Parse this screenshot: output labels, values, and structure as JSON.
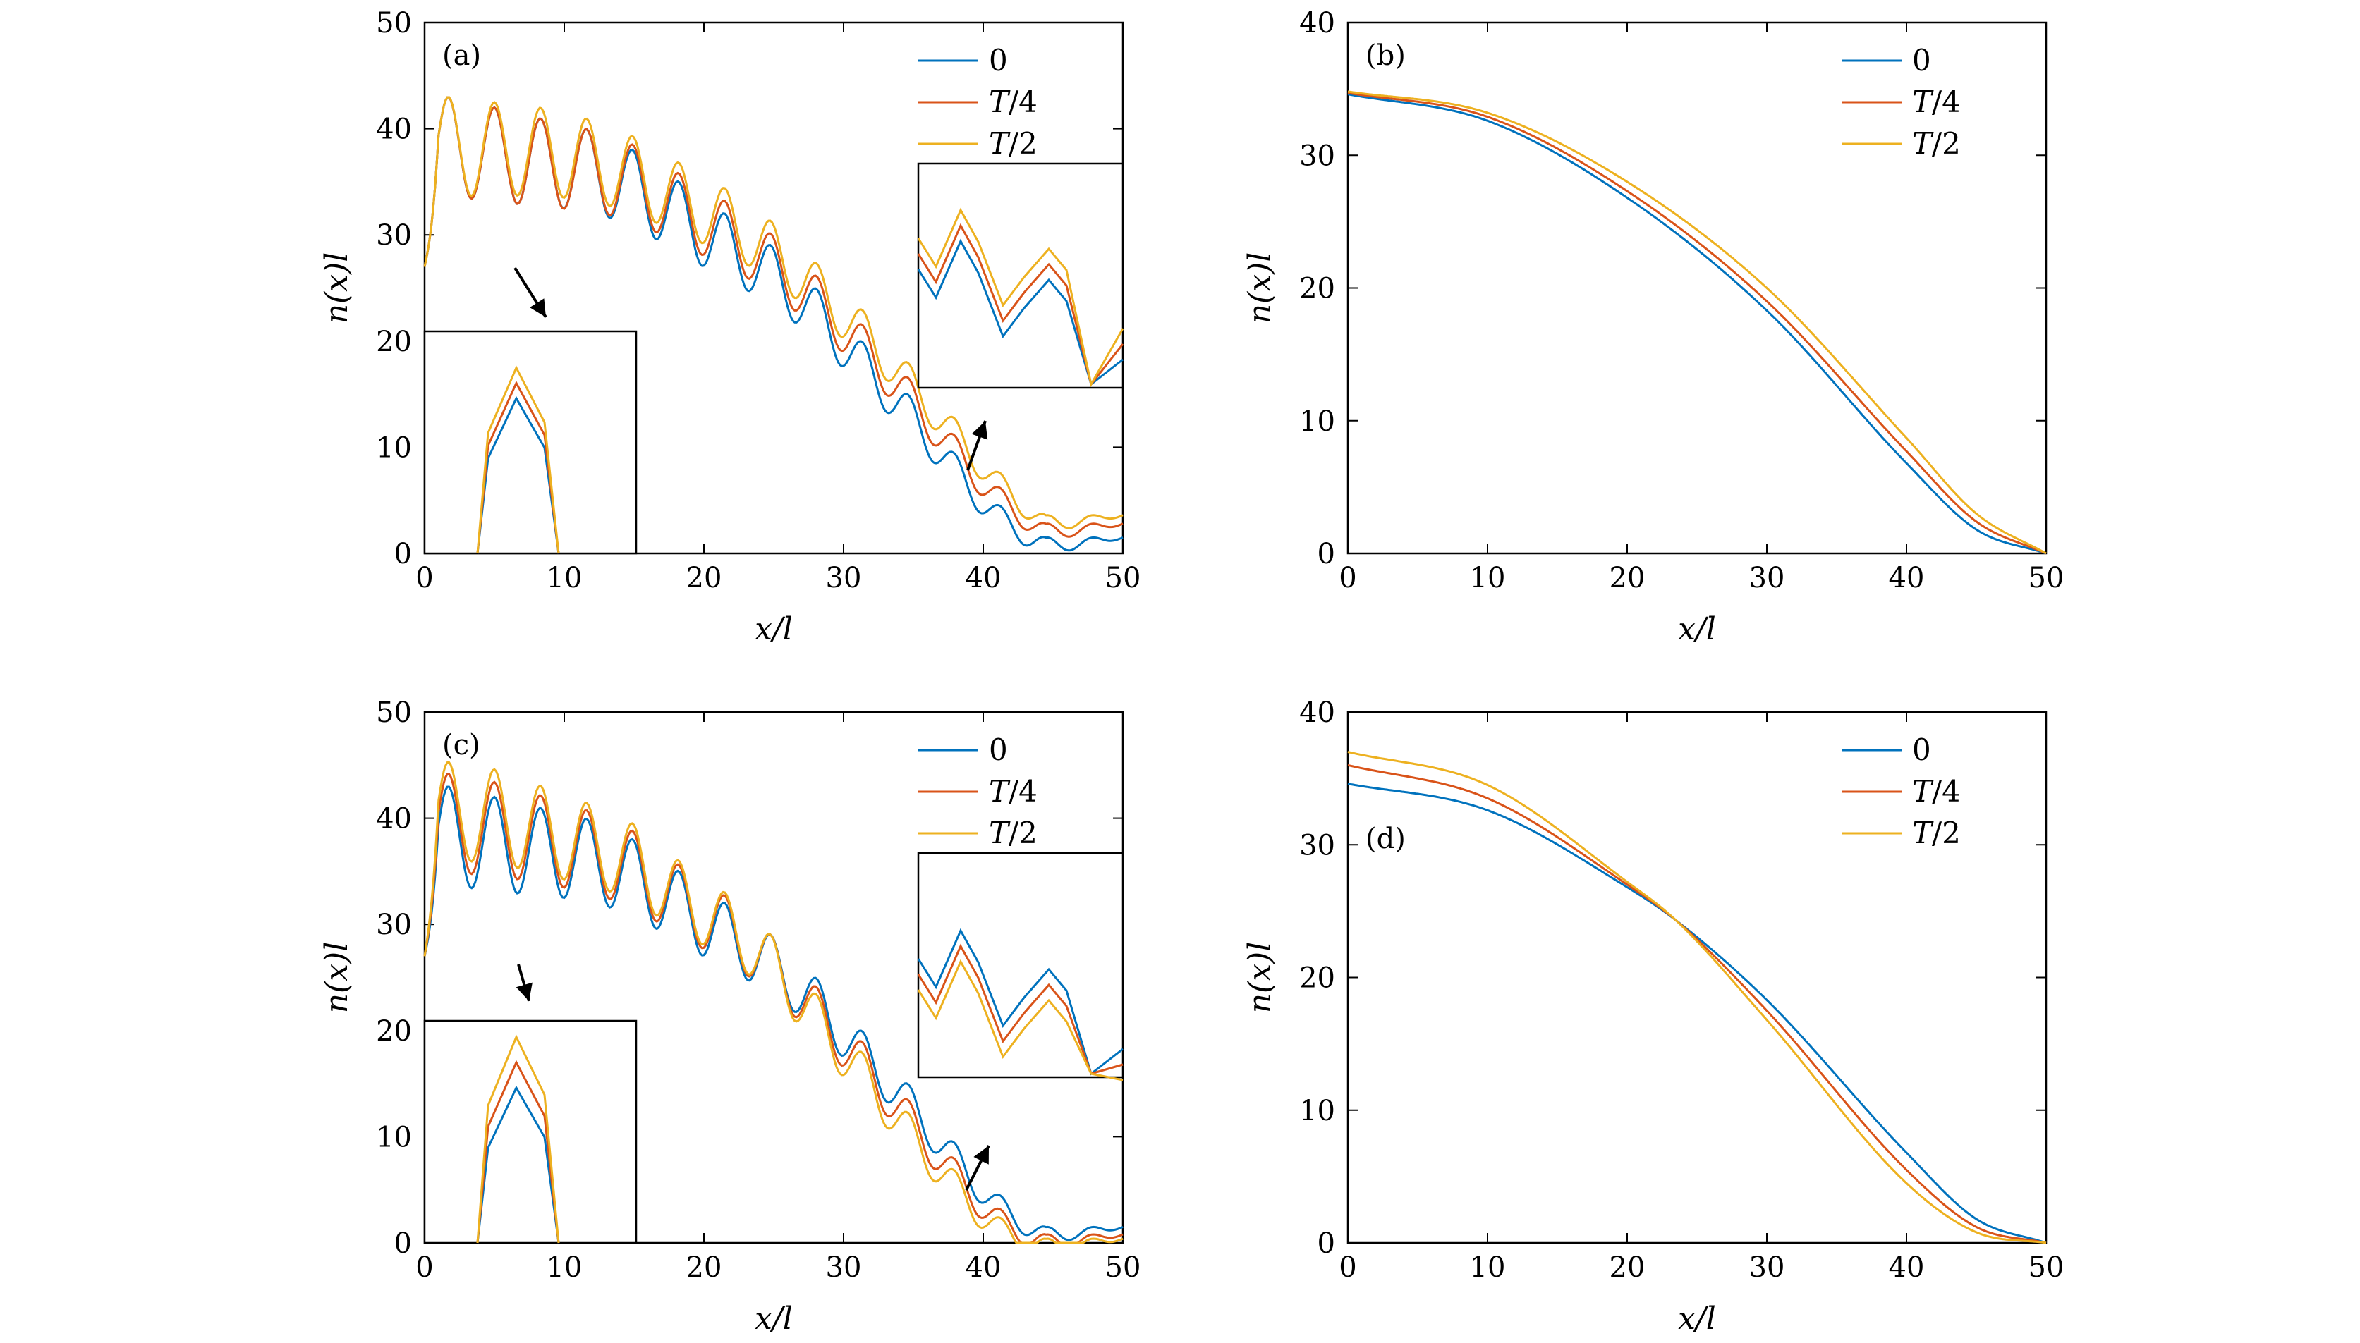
{
  "colors": {
    "series0": "#0072BD",
    "series1": "#D95319",
    "series2": "#EDB120"
  },
  "chart_data": [
    {
      "panel": "(a)",
      "type": "line",
      "xlabel": "x/l",
      "ylabel": "n(x)l",
      "xlim": [
        0,
        50
      ],
      "ylim": [
        0,
        50
      ],
      "xticks": [
        "0",
        "10",
        "20",
        "30",
        "40",
        "50"
      ],
      "yticks": [
        "0",
        "10",
        "20",
        "30",
        "40",
        "50"
      ],
      "legend_position": "top-right",
      "legend": [
        "0",
        "T/4",
        "T/2"
      ],
      "profile": "oscillating",
      "approx_peak_values": {
        "x": [
          1.7,
          5,
          8.2,
          11.5,
          14.9,
          18.2,
          21.5,
          24.8,
          28,
          31.3,
          34.6,
          37.9,
          41.2,
          44.5
        ],
        "0": [
          43,
          42,
          41,
          40,
          38,
          35,
          32,
          29,
          25,
          20,
          15,
          9.5,
          4.5,
          1.5
        ],
        "T/4": [
          43,
          42,
          41,
          40,
          38.5,
          35.8,
          33.2,
          30.1,
          26.2,
          21.6,
          16.6,
          11.2,
          6.2,
          2.8
        ],
        "T/2": [
          43,
          42.5,
          42,
          41,
          39.3,
          36.8,
          34.4,
          31.3,
          27.4,
          23,
          18,
          12.8,
          7.6,
          3.6
        ]
      },
      "insets": [
        {
          "position": "bottom-left",
          "arrow": "down-right",
          "shows": "zoom of the first peak"
        },
        {
          "position": "right",
          "arrow": "up-right",
          "shows": "zoom of peaks near x/l = 38-44"
        }
      ]
    },
    {
      "panel": "(b)",
      "type": "line",
      "xlabel": "x/l",
      "ylabel": "n(x)l",
      "xlim": [
        0,
        50
      ],
      "ylim": [
        0,
        40
      ],
      "xticks": [
        "0",
        "10",
        "20",
        "30",
        "40",
        "50"
      ],
      "yticks": [
        "0",
        "10",
        "20",
        "30",
        "40"
      ],
      "legend_position": "top-right",
      "legend": [
        "0",
        "T/4",
        "T/2"
      ],
      "profile": "smooth",
      "series": [
        {
          "name": "0",
          "values": {
            "x": [
              0,
              10,
              20,
              30,
              40,
              45,
              50
            ],
            "y": [
              34.6,
              32.6,
              26.8,
              18.3,
              6.8,
              1.8,
              0
            ]
          }
        },
        {
          "name": "T/4",
          "values": {
            "x": [
              0,
              10,
              20,
              30,
              40,
              45,
              50
            ],
            "y": [
              34.7,
              32.9,
              27.3,
              19,
              7.7,
              2.4,
              0
            ]
          }
        },
        {
          "name": "T/2",
          "values": {
            "x": [
              0,
              10,
              20,
              30,
              40,
              45,
              50
            ],
            "y": [
              34.8,
              33.2,
              28,
              20,
              8.7,
              3,
              0
            ]
          }
        }
      ]
    },
    {
      "panel": "(c)",
      "type": "line",
      "xlabel": "x/l",
      "ylabel": "n(x)l",
      "xlim": [
        0,
        50
      ],
      "ylim": [
        0,
        50
      ],
      "xticks": [
        "0",
        "10",
        "20",
        "30",
        "40",
        "50"
      ],
      "yticks": [
        "0",
        "10",
        "20",
        "30",
        "40",
        "50"
      ],
      "legend_position": "top-right",
      "legend": [
        "0",
        "T/4",
        "T/2"
      ],
      "profile": "oscillating",
      "approx_peak_values": {
        "x": [
          1.7,
          5,
          8.2,
          11.5,
          14.9,
          18.2,
          21.5,
          24.8,
          28,
          31.3,
          34.6,
          37.9,
          41.2,
          44.5
        ],
        "0": [
          43,
          42,
          41,
          40,
          38,
          35,
          32,
          29,
          25,
          20,
          15,
          9.5,
          4.5,
          1.5
        ],
        "T/4": [
          44.2,
          43.4,
          42.2,
          40.8,
          38.8,
          35.6,
          32.7,
          29,
          24.2,
          19,
          13.5,
          8,
          3.2,
          0.8
        ],
        "T/2": [
          45.3,
          44.6,
          43.1,
          41.5,
          39.5,
          36,
          33,
          29,
          23.5,
          18,
          12.3,
          6.9,
          2.4,
          0.4
        ]
      },
      "insets": [
        {
          "position": "bottom-left",
          "arrow": "down",
          "shows": "zoom of the first peak"
        },
        {
          "position": "right",
          "arrow": "up-right",
          "shows": "zoom of peaks near x/l = 38-44"
        }
      ]
    },
    {
      "panel": "(d)",
      "type": "line",
      "xlabel": "x/l",
      "ylabel": "n(x)l",
      "xlim": [
        0,
        50
      ],
      "ylim": [
        0,
        40
      ],
      "xticks": [
        "0",
        "10",
        "20",
        "30",
        "40",
        "50"
      ],
      "yticks": [
        "0",
        "10",
        "20",
        "30",
        "40"
      ],
      "legend_position": "top-right",
      "legend": [
        "0",
        "T/4",
        "T/2"
      ],
      "profile": "smooth",
      "series": [
        {
          "name": "0",
          "values": {
            "x": [
              0,
              10,
              20,
              23.5,
              30,
              40,
              45,
              50
            ],
            "y": [
              34.6,
              32.6,
              26.8,
              24.3,
              18.3,
              6.8,
              1.8,
              0
            ]
          }
        },
        {
          "name": "T/4",
          "values": {
            "x": [
              0,
              10,
              20,
              23.5,
              30,
              40,
              45,
              50
            ],
            "y": [
              36,
              33.5,
              27,
              24.3,
              17.5,
              5.5,
              1.2,
              0
            ]
          }
        },
        {
          "name": "T/2",
          "values": {
            "x": [
              0,
              10,
              20,
              23.5,
              30,
              40,
              45,
              50
            ],
            "y": [
              37,
              34.5,
              27.2,
              24.3,
              16.8,
              4.5,
              0.8,
              0
            ]
          }
        }
      ]
    }
  ]
}
